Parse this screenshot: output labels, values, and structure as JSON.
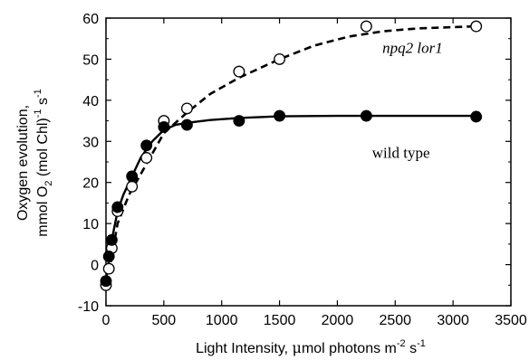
{
  "chart_data": {
    "type": "scatter",
    "title": "",
    "xlabel": "Light Intensity, μmol photons m⁻² s⁻¹",
    "xlabel_parts": {
      "main": "Light Intensity, ",
      "mu": "μ",
      "rest": "mol photons m",
      "sup1": "-2",
      "s": " s",
      "sup2": "-1"
    },
    "ylabel_line1": "Oxygen evolution,",
    "ylabel_line2_parts": {
      "a": "mmol O",
      "sub": "2",
      "b": " (mol Chl)",
      "sup1": "-1",
      "c": " s",
      "sup2": "-1"
    },
    "xlim": [
      0,
      3500
    ],
    "ylim": [
      -10,
      60
    ],
    "xticks": [
      0,
      500,
      1000,
      1500,
      2000,
      2500,
      3000,
      3500
    ],
    "yticks": [
      -10,
      0,
      10,
      20,
      30,
      40,
      50,
      60
    ],
    "grid": false,
    "series": [
      {
        "name": "wild type",
        "marker": "filled-circle",
        "line": "solid",
        "color": "#000000",
        "points": [
          [
            0,
            -4
          ],
          [
            25,
            2
          ],
          [
            50,
            6
          ],
          [
            100,
            14
          ],
          [
            225,
            21.5
          ],
          [
            350,
            29
          ],
          [
            500,
            33.5
          ],
          [
            700,
            34
          ],
          [
            1150,
            35
          ],
          [
            1500,
            36.2
          ],
          [
            2250,
            36.2
          ],
          [
            3200,
            36
          ]
        ],
        "fit": [
          [
            0,
            -4
          ],
          [
            50,
            6
          ],
          [
            100,
            13
          ],
          [
            150,
            17
          ],
          [
            225,
            21.5
          ],
          [
            300,
            26
          ],
          [
            400,
            30
          ],
          [
            500,
            32.8
          ],
          [
            600,
            34
          ],
          [
            700,
            34.5
          ],
          [
            900,
            35.2
          ],
          [
            1150,
            35.7
          ],
          [
            1500,
            36.1
          ],
          [
            2000,
            36.2
          ],
          [
            2500,
            36.2
          ],
          [
            3200,
            36.2
          ]
        ]
      },
      {
        "name": "npq2 lor1",
        "marker": "open-circle",
        "line": "dashed",
        "color": "#000000",
        "points": [
          [
            0,
            -5
          ],
          [
            25,
            -1
          ],
          [
            50,
            4
          ],
          [
            100,
            13
          ],
          [
            225,
            19
          ],
          [
            350,
            26
          ],
          [
            500,
            35
          ],
          [
            700,
            38
          ],
          [
            1150,
            47
          ],
          [
            1500,
            50
          ],
          [
            2250,
            58
          ],
          [
            3200,
            58
          ]
        ],
        "fit": [
          [
            0,
            -5
          ],
          [
            50,
            2
          ],
          [
            100,
            10
          ],
          [
            200,
            17
          ],
          [
            300,
            22
          ],
          [
            400,
            27
          ],
          [
            500,
            32
          ],
          [
            700,
            37
          ],
          [
            900,
            41.5
          ],
          [
            1150,
            45.5
          ],
          [
            1500,
            50
          ],
          [
            1800,
            53.3
          ],
          [
            2100,
            55.5
          ],
          [
            2400,
            56.8
          ],
          [
            2700,
            57.5
          ],
          [
            3000,
            57.8
          ],
          [
            3200,
            58
          ]
        ]
      }
    ],
    "annotations": [
      {
        "text": "npq2 lor1",
        "x": 2650,
        "y": 51.5,
        "style": "italic"
      },
      {
        "text": "wild type",
        "x": 2550,
        "y": 26,
        "style": "normal"
      }
    ]
  }
}
